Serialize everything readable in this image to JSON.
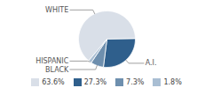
{
  "chart_data": {
    "type": "pie",
    "categories": [
      "WHITE",
      "A.I.",
      "BLACK",
      "HISPANIC"
    ],
    "values": [
      63.6,
      27.3,
      7.3,
      1.8
    ],
    "value_labels": [
      "63.6%",
      "27.3%",
      "7.3%",
      "1.8%"
    ],
    "colors": [
      "#d9dfe8",
      "#2f5f8c",
      "#6e8fae",
      "#a9bed3"
    ],
    "legend": "bottom"
  }
}
